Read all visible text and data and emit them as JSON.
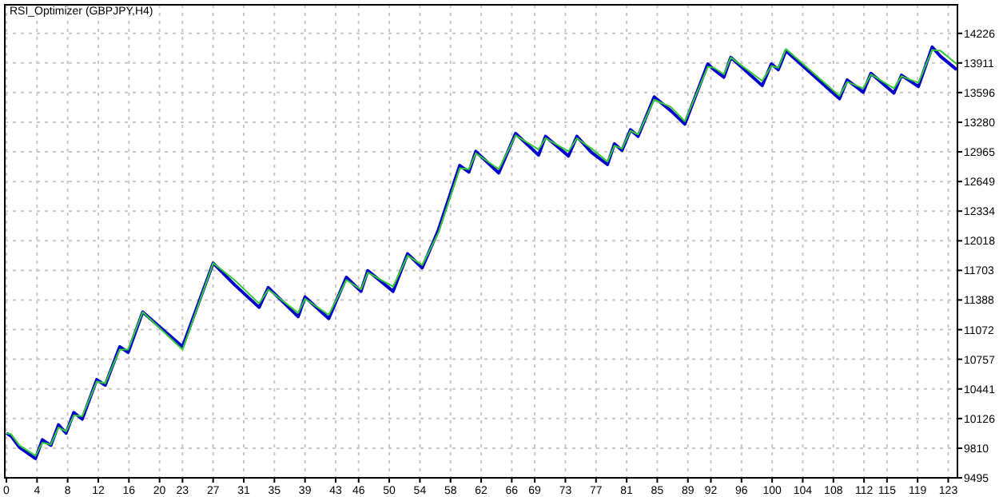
{
  "chart_data": {
    "type": "line",
    "title": "RSI_Optimizer (GBPJPY,H4)",
    "x": [
      0,
      0.6,
      1.7,
      3.8,
      4.7,
      5.8,
      6.8,
      7.8,
      8.8,
      9.9,
      11.8,
      12.9,
      14.8,
      15.9,
      17.8,
      23.0,
      27.0,
      29.8,
      33.0,
      34.2,
      38.1,
      39.0,
      42.1,
      44.4,
      46.3,
      47.2,
      50.5,
      52.4,
      54.3,
      56.4,
      59.2,
      60.4,
      61.3,
      64.3,
      66.5,
      69.5,
      70.4,
      73.4,
      74.5,
      76.4,
      78.5,
      79.4,
      80.4,
      81.5,
      82.5,
      84.6,
      86.8,
      88.6,
      91.6,
      92.4,
      93.7,
      94.6,
      98.7,
      99.9,
      100.8,
      101.8,
      108.8,
      109.8,
      111.9,
      112.9,
      115.9,
      116.9,
      119.1,
      120.9,
      122.0,
      124.1
    ],
    "series": [
      {
        "color": "#0000cc",
        "values": [
          9970,
          9940,
          9820,
          9700,
          9900,
          9840,
          10060,
          9970,
          10190,
          10120,
          10540,
          10480,
          10890,
          10830,
          11260,
          10890,
          11780,
          11550,
          11310,
          11520,
          11210,
          11420,
          11190,
          11630,
          11480,
          11700,
          11480,
          11880,
          11730,
          12130,
          12820,
          12750,
          12970,
          12740,
          13160,
          12930,
          13130,
          12920,
          13130,
          12960,
          12830,
          13050,
          12980,
          13200,
          13130,
          13550,
          13400,
          13260,
          13900,
          13840,
          13760,
          13970,
          13670,
          13900,
          13840,
          14040,
          13530,
          13730,
          13600,
          13800,
          13590,
          13780,
          13660,
          14080,
          13980,
          13840
        ]
      },
      {
        "color": "#33cc33",
        "values": [
          9970,
          9960,
          9840,
          9730,
          9870,
          9850,
          10030,
          9990,
          10160,
          10150,
          10520,
          10500,
          10860,
          10860,
          11260,
          10860,
          11780,
          11600,
          11350,
          11500,
          11250,
          11400,
          11230,
          11600,
          11500,
          11680,
          11530,
          11860,
          11760,
          12100,
          12790,
          12780,
          12950,
          12780,
          13140,
          12990,
          13110,
          12970,
          13110,
          13000,
          12860,
          13030,
          13000,
          13190,
          13150,
          13520,
          13440,
          13290,
          13870,
          13860,
          13790,
          13970,
          13720,
          13880,
          13860,
          14060,
          13560,
          13710,
          13640,
          13790,
          13640,
          13770,
          13700,
          14050,
          14040,
          13900
        ]
      }
    ],
    "xlim": [
      0,
      124.2
    ],
    "ylim": [
      9495,
      14530
    ],
    "xticks": [
      0,
      4,
      8,
      12,
      16,
      20,
      23,
      27,
      31,
      35,
      39,
      43,
      46,
      50,
      54,
      58,
      62,
      66,
      69,
      73,
      77,
      81,
      85,
      89,
      92,
      96,
      100,
      104,
      108,
      112,
      115,
      119,
      123
    ],
    "yticks": [
      9495,
      9810,
      10126,
      10441,
      10757,
      11072,
      11388,
      11703,
      12018,
      12334,
      12649,
      12965,
      13280,
      13596,
      13911,
      14226
    ],
    "grid": true
  }
}
